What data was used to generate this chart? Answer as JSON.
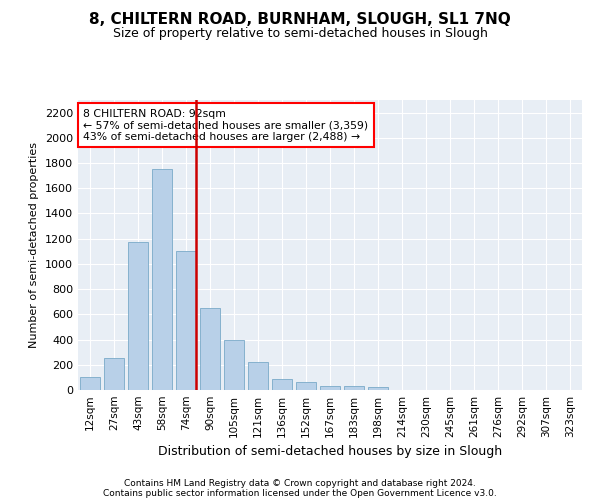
{
  "title": "8, CHILTERN ROAD, BURNHAM, SLOUGH, SL1 7NQ",
  "subtitle": "Size of property relative to semi-detached houses in Slough",
  "xlabel": "Distribution of semi-detached houses by size in Slough",
  "ylabel": "Number of semi-detached properties",
  "footnote1": "Contains HM Land Registry data © Crown copyright and database right 2024.",
  "footnote2": "Contains public sector information licensed under the Open Government Licence v3.0.",
  "annotation_title": "8 CHILTERN ROAD: 92sqm",
  "annotation_line1": "← 57% of semi-detached houses are smaller (3,359)",
  "annotation_line2": "43% of semi-detached houses are larger (2,488) →",
  "bar_color": "#b8d0e8",
  "bar_edge_color": "#7aaac8",
  "highlight_color": "#cc0000",
  "red_line_index": 4,
  "categories": [
    "12sqm",
    "27sqm",
    "43sqm",
    "58sqm",
    "74sqm",
    "90sqm",
    "105sqm",
    "121sqm",
    "136sqm",
    "152sqm",
    "167sqm",
    "183sqm",
    "198sqm",
    "214sqm",
    "230sqm",
    "245sqm",
    "261sqm",
    "276sqm",
    "292sqm",
    "307sqm",
    "323sqm"
  ],
  "values": [
    100,
    250,
    1175,
    1750,
    1100,
    650,
    400,
    225,
    90,
    65,
    35,
    30,
    20,
    0,
    0,
    0,
    0,
    0,
    0,
    0,
    0
  ],
  "ylim": [
    0,
    2300
  ],
  "yticks": [
    0,
    200,
    400,
    600,
    800,
    1000,
    1200,
    1400,
    1600,
    1800,
    2000,
    2200
  ],
  "background_color": "#e8eef5",
  "title_fontsize": 11,
  "subtitle_fontsize": 9,
  "ylabel_fontsize": 8,
  "xlabel_fontsize": 9,
  "tick_fontsize": 8,
  "xtick_fontsize": 7.5
}
